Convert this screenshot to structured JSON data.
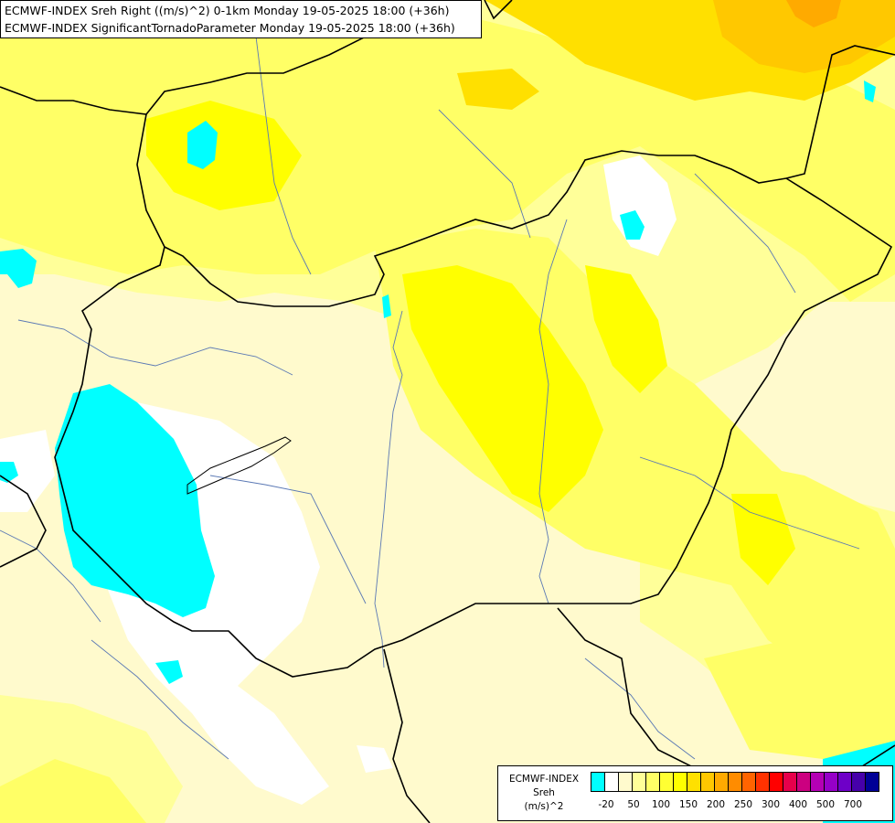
{
  "header": {
    "title_line_1": "ECMWF-INDEX Sreh Right ((m/s)^2) 0-1km Monday 19-05-2025 18:00 (+36h)",
    "title_line_2": "ECMWF-INDEX SignificantTornadoParameter Monday 19-05-2025 18:00 (+36h)"
  },
  "legend": {
    "line_1": "ECMWF-INDEX",
    "line_2": "Sreh",
    "line_3": "(m/s)^2",
    "colors": [
      "#00ffff",
      "#ffffff",
      "#fffacd",
      "#ffff99",
      "#ffff66",
      "#ffff33",
      "#ffff00",
      "#ffe000",
      "#ffc800",
      "#ffaa00",
      "#ff8c00",
      "#ff6400",
      "#ff3200",
      "#ff0000",
      "#e6004b",
      "#cc0080",
      "#b400b4",
      "#9600c8",
      "#6e00c8",
      "#4600aa",
      "#000096"
    ],
    "ticks": [
      "-20",
      "50",
      "100",
      "150",
      "200",
      "250",
      "300",
      "400",
      "500",
      "700"
    ]
  },
  "map_colors": {
    "background": "#fffacd",
    "pale_yellow": "#ffff99",
    "light_yellow": "#ffff66",
    "yellow": "#ffff00",
    "gold": "#ffe000",
    "orange_light": "#ffc800",
    "orange": "#ffaa00",
    "white": "#ffffff",
    "cyan": "#00ffff",
    "border": "#000000",
    "river": "#5a78b4"
  }
}
